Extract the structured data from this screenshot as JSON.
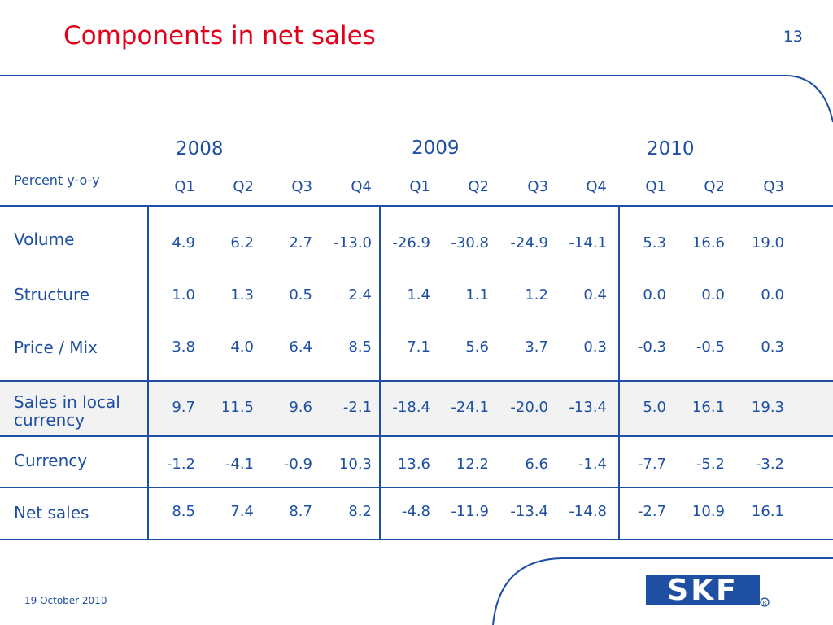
{
  "title": "Components in net sales",
  "page_number": "13",
  "date": "19 October 2010",
  "logo_text": "SKF",
  "colors": {
    "title": "#e2001a",
    "text": "#1e4fa3",
    "band": "#f2f2f2"
  },
  "table": {
    "header_label": "Percent y-o-y",
    "years": [
      "2008",
      "2009",
      "2010"
    ],
    "quarters": [
      "Q1",
      "Q2",
      "Q3",
      "Q4",
      "Q1",
      "Q2",
      "Q3",
      "Q4",
      "Q1",
      "Q2",
      "Q3"
    ],
    "rows": [
      {
        "label": "Volume",
        "values": [
          "4.9",
          "6.2",
          "2.7",
          "-13.0",
          "-26.9",
          "-30.8",
          "-24.9",
          "-14.1",
          "5.3",
          "16.6",
          "19.0"
        ]
      },
      {
        "label": "Structure",
        "values": [
          "1.0",
          "1.3",
          "0.5",
          "2.4",
          "1.4",
          "1.1",
          "1.2",
          "0.4",
          "0.0",
          "0.0",
          "0.0"
        ]
      },
      {
        "label": "Price / Mix",
        "values": [
          "3.8",
          "4.0",
          "6.4",
          "8.5",
          "7.1",
          "5.6",
          "3.7",
          "0.3",
          "-0.3",
          "-0.5",
          "0.3"
        ]
      },
      {
        "label": "Sales in local currency",
        "label_line1": "Sales in local",
        "label_line2": "currency",
        "values": [
          "9.7",
          "11.5",
          "9.6",
          "-2.1",
          "-18.4",
          "-24.1",
          "-20.0",
          "-13.4",
          "5.0",
          "16.1",
          "19.3"
        ]
      },
      {
        "label": "Currency",
        "values": [
          "-1.2",
          "-4.1",
          "-0.9",
          "10.3",
          "13.6",
          "12.2",
          "6.6",
          "-1.4",
          "-7.7",
          "-5.2",
          "-3.2"
        ]
      },
      {
        "label": "Net sales",
        "values": [
          "8.5",
          "7.4",
          "8.7",
          "8.2",
          "-4.8",
          "-11.9",
          "-13.4",
          "-14.8",
          "-2.7",
          "10.9",
          "16.1"
        ]
      }
    ]
  }
}
